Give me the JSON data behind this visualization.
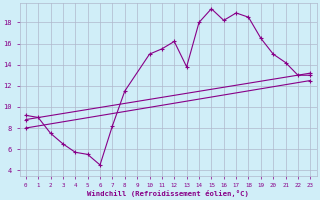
{
  "xlabel": "Windchill (Refroidissement éolien,°C)",
  "bg_color": "#d0eef8",
  "line_color": "#880088",
  "grid_color": "#b0b8cc",
  "xlim": [
    -0.5,
    23.5
  ],
  "ylim": [
    3.5,
    19.8
  ],
  "xticks": [
    0,
    1,
    2,
    3,
    4,
    5,
    6,
    7,
    8,
    9,
    10,
    11,
    12,
    13,
    14,
    15,
    16,
    17,
    18,
    19,
    20,
    21,
    22,
    23
  ],
  "yticks": [
    4,
    6,
    8,
    10,
    12,
    14,
    16,
    18
  ],
  "line1_x": [
    0,
    1,
    2,
    3,
    4,
    5,
    6,
    7,
    8,
    10,
    11,
    12,
    13,
    14,
    15,
    16,
    17,
    18,
    19,
    20,
    21,
    22,
    23
  ],
  "line1_y": [
    9.2,
    9.0,
    7.5,
    6.5,
    5.7,
    5.5,
    4.5,
    8.2,
    11.5,
    15.0,
    15.5,
    16.2,
    13.8,
    18.0,
    19.3,
    18.2,
    18.9,
    18.5,
    16.5,
    15.0,
    14.2,
    13.0,
    13.0
  ],
  "line3_x": [
    0,
    23
  ],
  "line3_y": [
    8.0,
    12.5
  ],
  "line4_x": [
    0,
    23
  ],
  "line4_y": [
    8.8,
    13.2
  ]
}
